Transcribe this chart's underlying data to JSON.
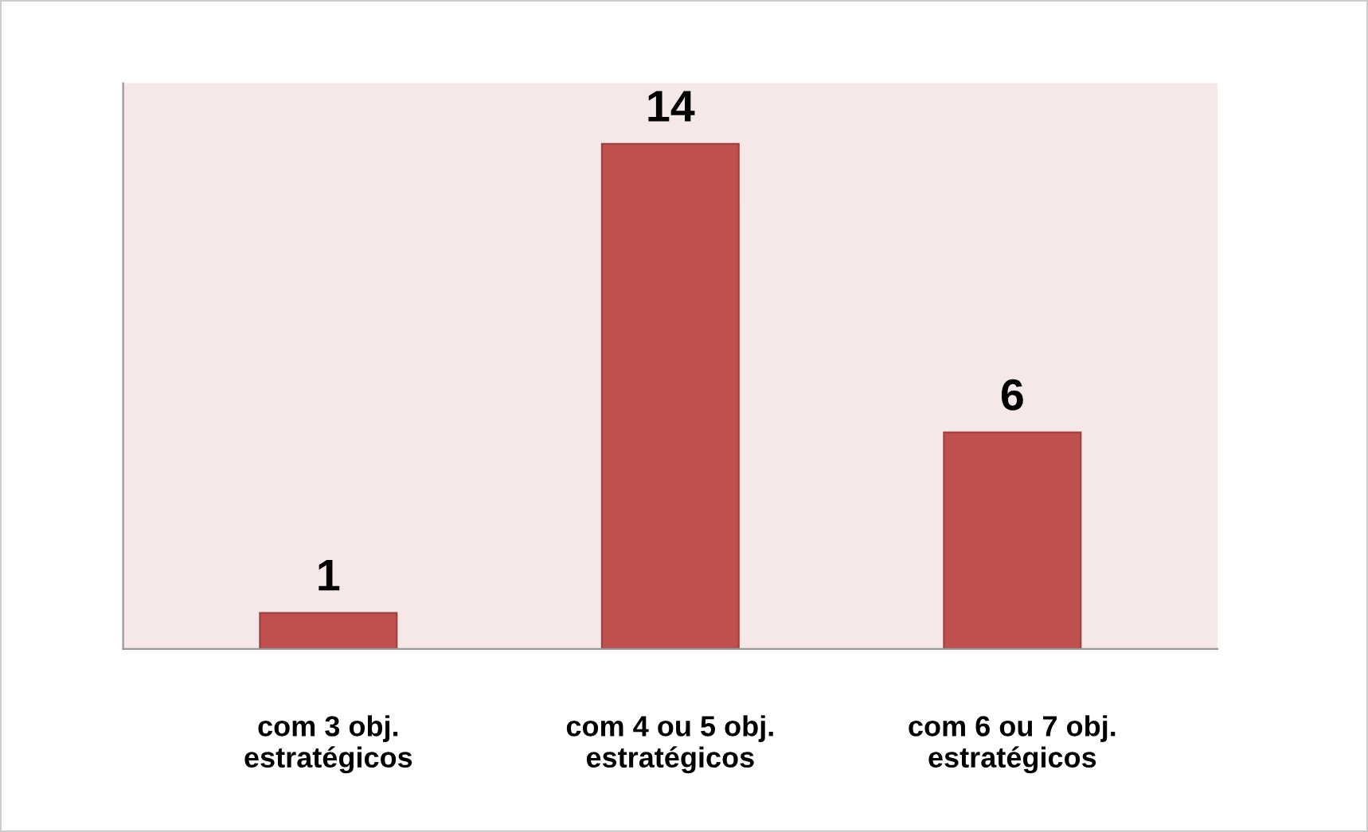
{
  "chart_data": {
    "type": "bar",
    "categories": [
      "com 3 obj.\nestratégicos",
      "com 4 ou 5 obj.\nestratégicos",
      "com 6 ou 7 obj.\nestratégicos"
    ],
    "values": [
      1,
      14,
      6
    ],
    "color": "#c0504d",
    "data_labels": true
  }
}
